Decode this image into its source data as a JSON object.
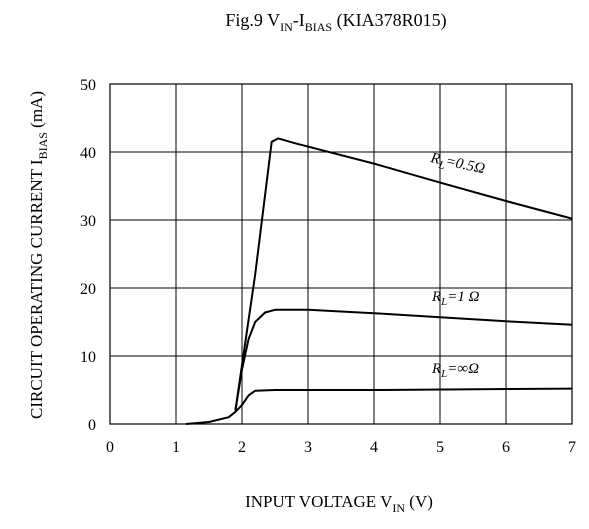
{
  "chart_data": {
    "type": "line",
    "title": {
      "prefix": "Fig.9  V",
      "sub1": "IN",
      "mid": "-I",
      "sub2": "BIAS",
      "suffix": "  (KIA378R015)"
    },
    "xlabel": {
      "main": "INPUT VOLTAGE  V",
      "sub": "IN",
      "unit": " (V)"
    },
    "ylabel": {
      "main": "CIRCUIT OPERATING CURRENT  I",
      "sub": "BIAS",
      "unit": "  (mA)"
    },
    "xlim": [
      0,
      7
    ],
    "ylim": [
      0,
      50
    ],
    "xticks": [
      "0",
      "1",
      "2",
      "3",
      "4",
      "5",
      "6",
      "7"
    ],
    "yticks": [
      "0",
      "10",
      "20",
      "30",
      "40",
      "50"
    ],
    "grid": true,
    "series": [
      {
        "name": "RL=0.5Ω",
        "label": {
          "r": "R",
          "sub": "L",
          "rest": "=0.5Ω"
        },
        "x": [
          1.9,
          2.2,
          2.45,
          2.55,
          2.8,
          4.0,
          5.0,
          6.0,
          7.0
        ],
        "y": [
          2.0,
          22.0,
          41.5,
          42.0,
          41.3,
          38.3,
          35.5,
          32.8,
          30.2
        ]
      },
      {
        "name": "RL=1 Ω",
        "label": {
          "r": "R",
          "sub": "L",
          "rest": "=1 Ω"
        },
        "x": [
          1.9,
          2.0,
          2.1,
          2.2,
          2.35,
          2.5,
          3.0,
          4.0,
          5.0,
          6.0,
          7.0
        ],
        "y": [
          2.0,
          8.0,
          12.5,
          15.0,
          16.4,
          16.8,
          16.8,
          16.3,
          15.7,
          15.1,
          14.6
        ]
      },
      {
        "name": "RL=∞Ω",
        "label": {
          "r": "R",
          "sub": "L",
          "rest": "=∞Ω"
        },
        "x": [
          1.15,
          1.5,
          1.8,
          1.9,
          2.0,
          2.1,
          2.2,
          2.5,
          4.0,
          7.0
        ],
        "y": [
          0.0,
          0.3,
          1.0,
          1.8,
          2.8,
          4.2,
          4.9,
          5.0,
          5.0,
          5.2
        ]
      }
    ]
  }
}
